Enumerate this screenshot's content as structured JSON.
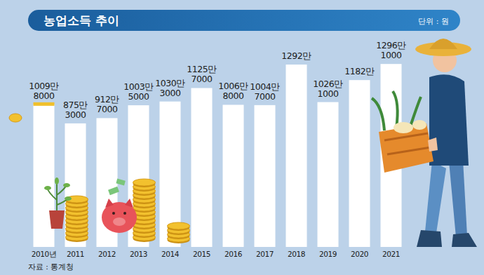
{
  "chart_data": {
    "type": "bar",
    "title": "농업소득 추이",
    "subtitle": "단위 : 원",
    "source": "자료 : 통계청",
    "categories": [
      "2010년",
      "2011",
      "2012",
      "2013",
      "2014",
      "2015",
      "2016",
      "2017",
      "2018",
      "2019",
      "2020",
      "2021"
    ],
    "values": [
      10098000,
      8753000,
      9127000,
      10035000,
      10303000,
      11257000,
      10068000,
      10047000,
      12920000,
      10261000,
      11820000,
      12961000
    ],
    "value_labels": [
      "1009만 8000",
      "875만 3000",
      "912만 7000",
      "1003만 5000",
      "1030만 3000",
      "1125만 7000",
      "1006만 8000",
      "1004만 7000",
      "1292만",
      "1026만 1000",
      "1182만",
      "1296만 1000"
    ],
    "color": "#ffffff",
    "ylim": [
      0,
      16500000
    ],
    "data_labels": true,
    "tick_labels": "x",
    "grid": false
  }
}
